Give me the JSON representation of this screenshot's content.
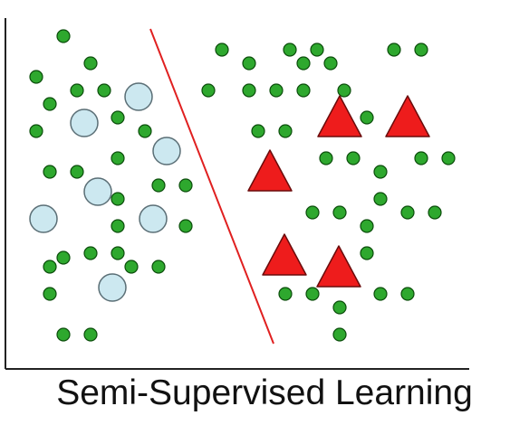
{
  "caption": "Semi-Supervised Learning",
  "colors": {
    "unlabeled_fill": "#2ea82e",
    "unlabeled_stroke": "#0b4d0b",
    "class_a_fill": "#cce8f0",
    "class_a_stroke": "#5a6e75",
    "class_b_fill": "#ee1c1c",
    "class_b_stroke": "#6a0b0b",
    "boundary": "#e02020",
    "axis": "#222222"
  },
  "legend": "none",
  "points": {
    "unlabeled": [
      [
        70,
        40
      ],
      [
        100,
        70
      ],
      [
        40,
        85
      ],
      [
        85,
        100
      ],
      [
        115,
        100
      ],
      [
        55,
        115
      ],
      [
        130,
        130
      ],
      [
        40,
        145
      ],
      [
        160,
        145
      ],
      [
        130,
        175
      ],
      [
        55,
        190
      ],
      [
        85,
        190
      ],
      [
        175,
        205
      ],
      [
        205,
        205
      ],
      [
        130,
        220
      ],
      [
        130,
        250
      ],
      [
        205,
        250
      ],
      [
        100,
        280
      ],
      [
        130,
        280
      ],
      [
        70,
        285
      ],
      [
        145,
        295
      ],
      [
        175,
        295
      ],
      [
        55,
        295
      ],
      [
        55,
        325
      ],
      [
        70,
        370
      ],
      [
        100,
        370
      ],
      [
        245,
        55
      ],
      [
        320,
        55
      ],
      [
        350,
        55
      ],
      [
        435,
        55
      ],
      [
        465,
        55
      ],
      [
        275,
        70
      ],
      [
        335,
        70
      ],
      [
        365,
        70
      ],
      [
        230,
        100
      ],
      [
        275,
        100
      ],
      [
        305,
        100
      ],
      [
        335,
        100
      ],
      [
        380,
        100
      ],
      [
        405,
        130
      ],
      [
        285,
        145
      ],
      [
        315,
        145
      ],
      [
        360,
        175
      ],
      [
        390,
        175
      ],
      [
        465,
        175
      ],
      [
        495,
        175
      ],
      [
        420,
        190
      ],
      [
        420,
        220
      ],
      [
        345,
        235
      ],
      [
        375,
        235
      ],
      [
        405,
        250
      ],
      [
        450,
        235
      ],
      [
        480,
        235
      ],
      [
        405,
        280
      ],
      [
        315,
        325
      ],
      [
        345,
        325
      ],
      [
        420,
        325
      ],
      [
        450,
        325
      ],
      [
        375,
        340
      ],
      [
        375,
        370
      ]
    ],
    "class_a": [
      [
        153,
        107
      ],
      [
        93,
        136
      ],
      [
        184,
        167
      ],
      [
        108,
        212
      ],
      [
        48,
        242
      ],
      [
        169,
        242
      ],
      [
        124,
        318
      ]
    ],
    "class_b": [
      [
        375,
        130
      ],
      [
        450,
        130
      ],
      [
        298,
        190
      ],
      [
        314,
        283
      ],
      [
        374,
        296
      ]
    ]
  }
}
